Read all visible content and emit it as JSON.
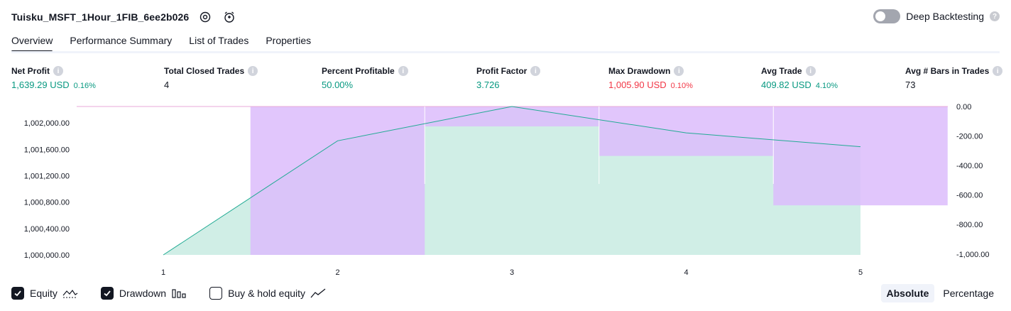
{
  "header": {
    "strategy_name": "Tuisku_MSFT_1Hour_1FIB_6ee2b026",
    "settings_icon": "settings-icon",
    "alert_icon": "add-alert-icon",
    "deep_backtesting_label": "Deep Backtesting",
    "deep_backtesting_on": false,
    "help_glyph": "?"
  },
  "tabs": [
    {
      "label": "Overview",
      "active": true
    },
    {
      "label": "Performance Summary",
      "active": false
    },
    {
      "label": "List of Trades",
      "active": false
    },
    {
      "label": "Properties",
      "active": false
    }
  ],
  "metrics": [
    {
      "label": "Net Profit",
      "value": "1,639.29 USD",
      "pct": "0.16%",
      "color": "pos"
    },
    {
      "label": "Total Closed Trades",
      "value": "4",
      "pct": "",
      "color": "neu"
    },
    {
      "label": "Percent Profitable",
      "value": "50.00%",
      "pct": "",
      "color": "pos"
    },
    {
      "label": "Profit Factor",
      "value": "3.726",
      "pct": "",
      "color": "pos"
    },
    {
      "label": "Max Drawdown",
      "value": "1,005.90 USD",
      "pct": "0.10%",
      "color": "neg"
    },
    {
      "label": "Avg Trade",
      "value": "409.82 USD",
      "pct": "4.10%",
      "color": "pos"
    },
    {
      "label": "Avg # Bars in Trades",
      "value": "73",
      "pct": "",
      "color": "neu"
    }
  ],
  "info_glyph": "i",
  "chart_data": {
    "type": "area",
    "x": [
      1,
      2,
      3,
      4,
      5
    ],
    "x_tick_labels": [
      "1",
      "2",
      "3",
      "4",
      "5"
    ],
    "left_axis": {
      "tick_values": [
        1000000,
        1000400,
        1000800,
        1001200,
        1001600,
        1002000
      ],
      "tick_labels": [
        "1,000,000.00",
        "1,000,400.00",
        "1,000,800.00",
        "1,001,200.00",
        "1,001,600.00",
        "1,002,000.00"
      ],
      "ylim": [
        1000000,
        1002250
      ]
    },
    "right_axis": {
      "tick_values": [
        0,
        -200,
        -400,
        -600,
        -800,
        -1000
      ],
      "tick_labels": [
        "0.00",
        "-200.00",
        "-400.00",
        "-600.00",
        "-800.00",
        "-1,000.00"
      ],
      "ylim": [
        -1006,
        0
      ]
    },
    "series": [
      {
        "name": "Equity",
        "axis": "left",
        "values": [
          1000000,
          1001730,
          1002250,
          1001850,
          1001640
        ]
      },
      {
        "name": "Drawdown",
        "axis": "right",
        "type": "bar",
        "values": [
          0,
          -1006,
          -135,
          -335,
          -670
        ]
      }
    ],
    "colors": {
      "equity_line": "#22ab94",
      "equity_fill": "#c8ebe2",
      "drawdown_fill": "#dcbcfb",
      "drawdown_top_line": "#e8a8d8"
    },
    "grid": false
  },
  "legend": {
    "items": [
      {
        "label": "Equity",
        "checked": true,
        "icon": "equity-line-icon"
      },
      {
        "label": "Drawdown",
        "checked": true,
        "icon": "drawdown-bars-icon"
      },
      {
        "label": "Buy & hold equity",
        "checked": false,
        "icon": "buy-hold-line-icon"
      }
    ]
  },
  "view_mode": {
    "options": [
      "Absolute",
      "Percentage"
    ],
    "selected": "Absolute"
  }
}
